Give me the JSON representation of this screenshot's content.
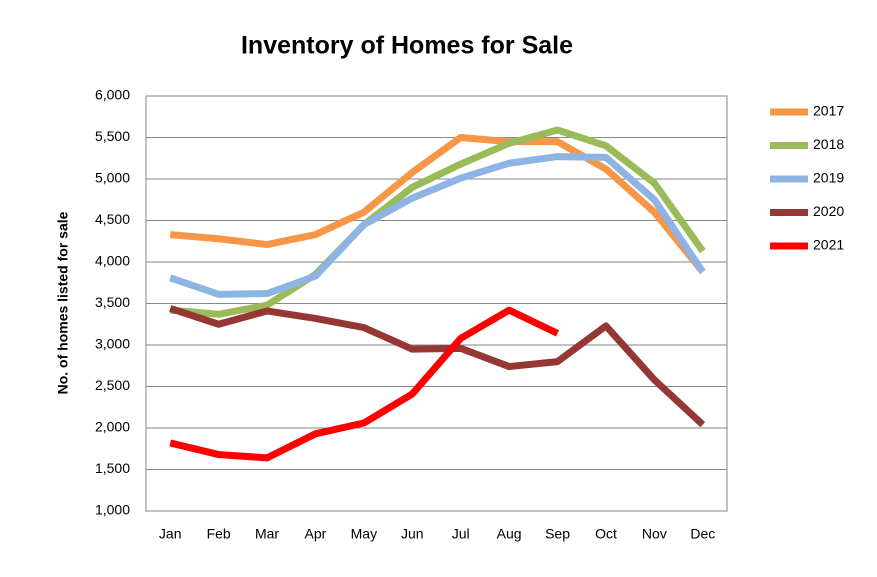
{
  "chart_data": {
    "type": "line",
    "title": "Inventory of Homes for Sale",
    "y_label": "No. of homes listed for sale",
    "categories": [
      "Jan",
      "Feb",
      "Mar",
      "Apr",
      "May",
      "Jun",
      "Jul",
      "Aug",
      "Sep",
      "Oct",
      "Nov",
      "Dec"
    ],
    "series": [
      {
        "name": "2017",
        "color": "#f79646",
        "values": [
          4330,
          4280,
          4210,
          4330,
          4600,
          5080,
          5500,
          5450,
          5450,
          5120,
          4600,
          3880
        ]
      },
      {
        "name": "2018",
        "color": "#9bbb59",
        "values": [
          3420,
          3370,
          3480,
          3850,
          4450,
          4900,
          5180,
          5430,
          5590,
          5400,
          4950,
          4130
        ]
      },
      {
        "name": "2019",
        "color": "#8db4e2",
        "values": [
          3810,
          3610,
          3620,
          3830,
          4450,
          4770,
          5010,
          5190,
          5270,
          5260,
          4750,
          3880
        ]
      },
      {
        "name": "2020",
        "color": "#953735",
        "values": [
          3440,
          3250,
          3410,
          3320,
          3210,
          2950,
          2960,
          2740,
          2800,
          3230,
          2580,
          2040
        ]
      },
      {
        "name": "2021",
        "color": "#ff0000",
        "values": [
          1820,
          1680,
          1640,
          1930,
          2060,
          2410,
          3080,
          3420,
          3140,
          null,
          null,
          null
        ]
      }
    ],
    "ylim": [
      1000,
      6000
    ],
    "yticks": [
      {
        "value": 1000,
        "label": "1,000"
      },
      {
        "value": 1500,
        "label": "1,500"
      },
      {
        "value": 2000,
        "label": "2,000"
      },
      {
        "value": 2500,
        "label": "2,500"
      },
      {
        "value": 3000,
        "label": "3,000"
      },
      {
        "value": 3500,
        "label": "3,500"
      },
      {
        "value": 4000,
        "label": "4,000"
      },
      {
        "value": 4500,
        "label": "4,500"
      },
      {
        "value": 5000,
        "label": "5,000"
      },
      {
        "value": 5500,
        "label": "5,500"
      },
      {
        "value": 6000,
        "label": "6,000"
      }
    ],
    "grid": true,
    "legend": "right"
  }
}
